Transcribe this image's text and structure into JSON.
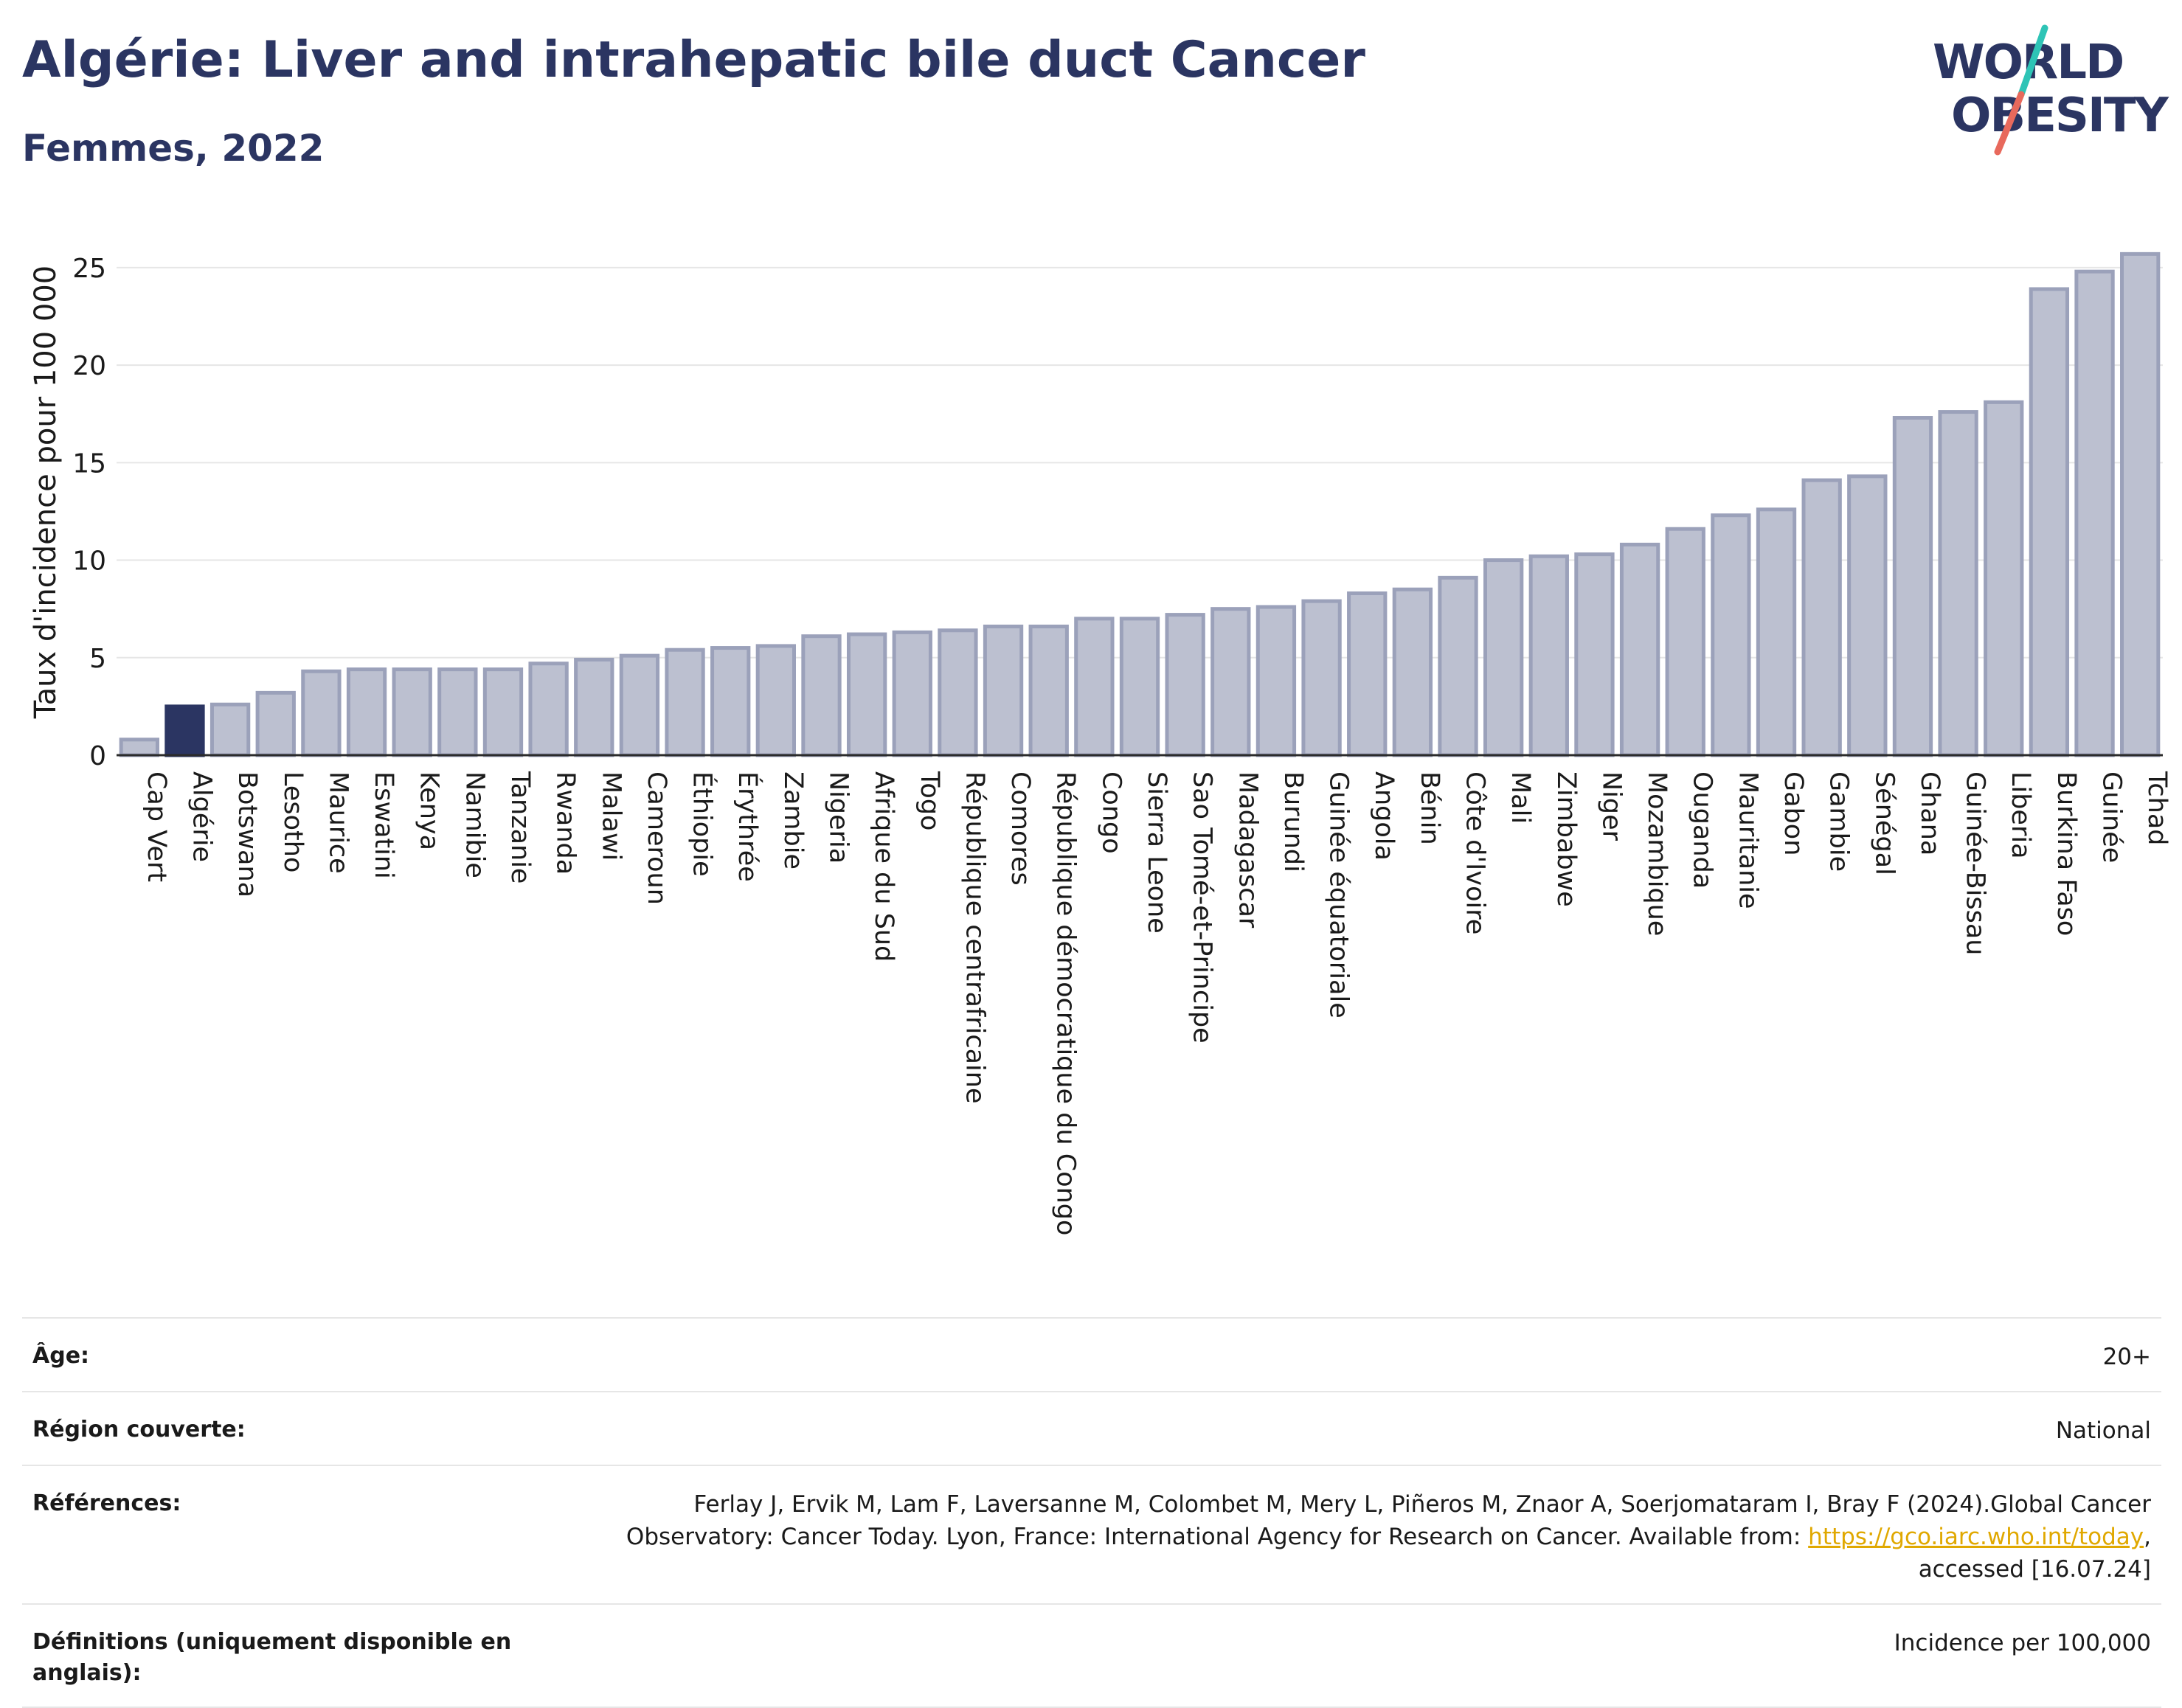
{
  "header": {
    "title": "Algérie: Liver and intrahepatic bile duct Cancer",
    "subtitle": "Femmes, 2022"
  },
  "logo": {
    "line1": "WORLD",
    "line2": "OBESITY",
    "colors": {
      "text": "#2b3562",
      "slash_top": "#2ec4b6",
      "slash_bottom": "#e8695c"
    }
  },
  "colors": {
    "highlight_bar": "#2b3562",
    "bar_fill": "#bcc0d0",
    "bar_stroke": "#9ba1ba",
    "grid": "#e6e6e6",
    "axis_text": "#1a1a1a"
  },
  "chart_data": {
    "type": "bar",
    "ylabel": "Taux d'incidence pour 100 000",
    "ylim": [
      0,
      27
    ],
    "yticks": [
      0,
      5,
      10,
      15,
      20,
      25
    ],
    "grid": true,
    "highlight": "Algérie",
    "categories": [
      "Cap Vert",
      "Algérie",
      "Botswana",
      "Lesotho",
      "Maurice",
      "Eswatini",
      "Kenya",
      "Namibie",
      "Tanzanie",
      "Rwanda",
      "Malawi",
      "Cameroun",
      "Éthiopie",
      "Érythrée",
      "Zambie",
      "Nigeria",
      "Afrique du Sud",
      "Togo",
      "République centrafricaine",
      "Comores",
      "République démocratique du Congo",
      "Congo",
      "Sierra Leone",
      "Sao Tomé-et-Principe",
      "Madagascar",
      "Burundi",
      "Guinée équatoriale",
      "Angola",
      "Bénin",
      "Côte d'Ivoire",
      "Mali",
      "Zimbabwe",
      "Niger",
      "Mozambique",
      "Ouganda",
      "Mauritanie",
      "Gabon",
      "Gambie",
      "Sénégal",
      "Ghana",
      "Guinée-Bissau",
      "Liberia",
      "Burkina Faso",
      "Guinée",
      "Tchad"
    ],
    "values": [
      0.8,
      2.5,
      2.6,
      3.2,
      4.3,
      4.4,
      4.4,
      4.4,
      4.4,
      4.7,
      4.9,
      5.1,
      5.4,
      5.5,
      5.6,
      6.1,
      6.2,
      6.3,
      6.4,
      6.6,
      6.6,
      7.0,
      7.0,
      7.2,
      7.5,
      7.6,
      7.9,
      8.3,
      8.5,
      9.1,
      10.0,
      10.2,
      10.3,
      10.8,
      11.6,
      12.3,
      12.6,
      14.1,
      14.3,
      17.3,
      17.6,
      18.1,
      23.9,
      24.8,
      25.7
    ]
  },
  "info": {
    "age": {
      "label": "Âge:",
      "value": "20+"
    },
    "region": {
      "label": "Région couverte:",
      "value": "National"
    },
    "references": {
      "label": "Références:",
      "text1": "Ferlay J, Ervik M, Lam F, Laversanne M, Colombet M, Mery L, Piñeros M, Znaor A, Soerjomataram I, Bray F (2024).Global Cancer Observatory: Cancer Today. Lyon, France: International Agency for Research on Cancer. Available from: ",
      "link": "https://gco.iarc.who.int/today",
      "text2": ", accessed [16.07.24]"
    },
    "definitions": {
      "label": "Définitions (uniquement disponible en anglais):",
      "value": "Incidence per 100,000"
    }
  }
}
